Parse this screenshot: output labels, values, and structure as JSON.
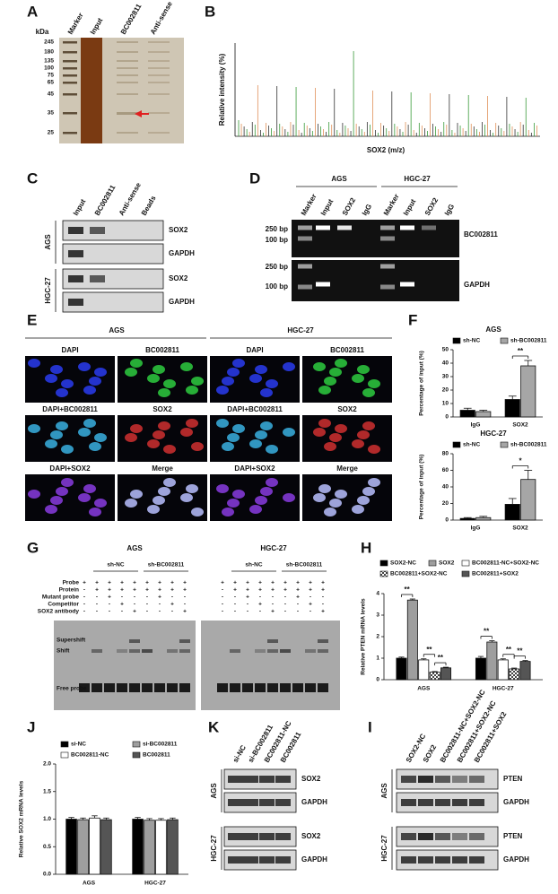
{
  "panels": {
    "A": {
      "letter": "A",
      "unit": "kDa",
      "markers": [
        245,
        180,
        135,
        100,
        75,
        65,
        45,
        35,
        25
      ],
      "lanes": [
        "Marker",
        "Input",
        "BC002811",
        "Anti-sense"
      ]
    },
    "B": {
      "letter": "B",
      "y_label": "Relative intensity (%)",
      "x_label": "SOX2 (m/z)"
    },
    "C": {
      "letter": "C",
      "lanes": [
        "Input",
        "BC002811",
        "Anti-sense",
        "Beads"
      ],
      "blocks": [
        {
          "cell": "AGS",
          "bands": [
            "SOX2",
            "GAPDH"
          ]
        },
        {
          "cell": "HGC-27",
          "bands": [
            "SOX2",
            "GAPDH"
          ]
        }
      ]
    },
    "D": {
      "letter": "D",
      "groups": [
        {
          "name": "AGS",
          "lanes": [
            "Marker",
            "Input",
            "SOX2",
            "IgG"
          ]
        },
        {
          "name": "HGC-27",
          "lanes": [
            "Marker",
            "Input",
            "SOX2",
            "IgG"
          ]
        }
      ],
      "sizes": [
        "250 bp",
        "100 bp",
        "250 bp",
        "100 bp"
      ],
      "targets": [
        "BC002811",
        "GAPDH"
      ]
    },
    "E": {
      "letter": "E",
      "groups": [
        "AGS",
        "HGC-27"
      ],
      "labels": [
        [
          "DAPI",
          "BC002811",
          "DAPI",
          "BC002811"
        ],
        [
          "DAPI+BC002811",
          "SOX2",
          "DAPI+BC002811",
          "SOX2"
        ],
        [
          "DAPI+SOX2",
          "Merge",
          "DAPI+SOX2",
          "Merge"
        ]
      ]
    },
    "F": {
      "letter": "F"
    },
    "G": {
      "letter": "G",
      "groups": [
        {
          "name": "AGS",
          "subgroups": [
            "sh-NC",
            "sh-BC002811"
          ]
        },
        {
          "name": "HGC-27",
          "subgroups": [
            "sh-NC",
            "sh-BC002811"
          ]
        }
      ],
      "rows": [
        "Probe",
        "Protein",
        "Mutant probe",
        "Competitor",
        "SOX2 antibody"
      ],
      "signs": [
        [
          [
            "+",
            "+",
            "+",
            "+",
            "+",
            "+",
            "+",
            "+",
            "+"
          ],
          [
            "-",
            "+",
            "+",
            "+",
            "+",
            "+",
            "+",
            "+",
            "+"
          ],
          [
            "-",
            "-",
            "+",
            "-",
            "-",
            "-",
            "+",
            "-",
            "-"
          ],
          [
            "-",
            "-",
            "-",
            "+",
            "-",
            "-",
            "-",
            "+",
            "-"
          ],
          [
            "-",
            "-",
            "-",
            "-",
            "+",
            "-",
            "-",
            "-",
            "+"
          ]
        ],
        [
          [
            "+",
            "+",
            "+",
            "+",
            "+",
            "+",
            "+",
            "+",
            "+"
          ],
          [
            "-",
            "+",
            "+",
            "+",
            "+",
            "+",
            "+",
            "+",
            "+"
          ],
          [
            "-",
            "-",
            "+",
            "-",
            "-",
            "-",
            "+",
            "-",
            "-"
          ],
          [
            "-",
            "-",
            "-",
            "+",
            "-",
            "-",
            "-",
            "+",
            "-"
          ],
          [
            "-",
            "-",
            "-",
            "-",
            "+",
            "-",
            "-",
            "-",
            "+"
          ]
        ]
      ],
      "bands": [
        "Supershift",
        "Shift",
        "Free probe"
      ]
    },
    "H": {
      "letter": "H"
    },
    "J": {
      "letter": "J"
    },
    "K": {
      "letter": "K",
      "lanes": [
        "si-NC",
        "si-BC002811",
        "BC002811-NC",
        "BC002811"
      ],
      "blocks": [
        {
          "cell": "AGS",
          "bands": [
            "SOX2",
            "GAPDH"
          ]
        },
        {
          "cell": "HGC-27",
          "bands": [
            "SOX2",
            "GAPDH"
          ]
        }
      ]
    },
    "I": {
      "letter": "I",
      "lanes": [
        "SOX2-NC",
        "SOX2",
        "BC002811-NC+SOX2-NC",
        "BC002811+SOX2-NC",
        "BC002811+SOX2"
      ],
      "blocks": [
        {
          "cell": "AGS",
          "bands": [
            "PTEN",
            "GAPDH"
          ]
        },
        {
          "cell": "HGC-27",
          "bands": [
            "PTEN",
            "GAPDH"
          ]
        }
      ]
    }
  },
  "chart_data": [
    {
      "type": "bar",
      "title": "AGS",
      "y_label": "Percentage of input (%)",
      "categories": [
        "IgG",
        "SOX2"
      ],
      "series": [
        {
          "name": "sh-NC",
          "color": "#000000",
          "values": [
            5,
            13
          ],
          "errors": [
            1.5,
            2.5
          ]
        },
        {
          "name": "sh-BC002811",
          "color": "#a6a6a6",
          "values": [
            4,
            38
          ],
          "errors": [
            1,
            4
          ]
        }
      ],
      "ylim": [
        0,
        50
      ],
      "yticks": [
        0,
        10,
        20,
        30,
        40,
        50
      ],
      "annotations": [
        "**"
      ]
    },
    {
      "type": "bar",
      "title": "HGC-27",
      "y_label": "Percentage of input (%)",
      "categories": [
        "IgG",
        "SOX2"
      ],
      "series": [
        {
          "name": "sh-NC",
          "color": "#000000",
          "values": [
            2,
            19
          ],
          "errors": [
            1,
            7
          ]
        },
        {
          "name": "sh-BC002811",
          "color": "#a6a6a6",
          "values": [
            3,
            49
          ],
          "errors": [
            1.5,
            11
          ]
        }
      ],
      "ylim": [
        0,
        80
      ],
      "yticks": [
        0,
        20,
        40,
        60,
        80
      ],
      "annotations": [
        "*"
      ]
    },
    {
      "type": "bar",
      "y_label": "Relative PTEN mRNA levels",
      "categories": [
        "AGS",
        "HGC-27"
      ],
      "series": [
        {
          "name": "SOX2-NC",
          "color": "#000000",
          "values": [
            1,
            1
          ],
          "errors": [
            0.05,
            0.08
          ]
        },
        {
          "name": "SOX2",
          "color": "#9e9e9e",
          "values": [
            3.7,
            1.75
          ],
          "errors": [
            0.05,
            0.06
          ]
        },
        {
          "name": "BC002811-NC+SOX2-NC",
          "color": "#ffffff",
          "values": [
            0.92,
            0.92
          ],
          "errors": [
            0.05,
            0.05
          ]
        },
        {
          "name": "BC002811+SOX2-NC",
          "color": "#cccccc",
          "fill_pattern": "checkered",
          "values": [
            0.35,
            0.5
          ],
          "errors": [
            0.03,
            0.04
          ]
        },
        {
          "name": "BC002811+SOX2",
          "color": "#555555",
          "values": [
            0.55,
            0.85
          ],
          "errors": [
            0.03,
            0.04
          ]
        }
      ],
      "ylim": [
        0,
        4
      ],
      "yticks": [
        0,
        1,
        2,
        3,
        4
      ],
      "annotations": [
        "**",
        "**",
        "**",
        "**",
        "**",
        "**"
      ]
    },
    {
      "type": "bar",
      "y_label": "Relative SOX2 mRNA levels",
      "categories": [
        "AGS",
        "HGC-27"
      ],
      "series": [
        {
          "name": "si-NC",
          "color": "#000000",
          "values": [
            1.0,
            1.0
          ],
          "errors": [
            0.03,
            0.03
          ]
        },
        {
          "name": "si-BC002811",
          "color": "#9e9e9e",
          "values": [
            0.99,
            0.98
          ],
          "errors": [
            0.03,
            0.03
          ]
        },
        {
          "name": "BC002811-NC",
          "color": "#ffffff",
          "values": [
            1.02,
            0.98
          ],
          "errors": [
            0.04,
            0.03
          ]
        },
        {
          "name": "BC002811",
          "color": "#555555",
          "values": [
            0.99,
            0.99
          ],
          "errors": [
            0.03,
            0.03
          ]
        }
      ],
      "ylim": [
        0,
        2
      ],
      "yticks": [
        {
          "value": 0,
          "label": "0.0"
        },
        {
          "value": 0.5,
          "label": "0.5"
        },
        {
          "value": 1,
          "label": "1.0"
        },
        {
          "value": 1.5,
          "label": "1.5"
        },
        {
          "value": 2,
          "label": "2.0"
        }
      ]
    }
  ]
}
